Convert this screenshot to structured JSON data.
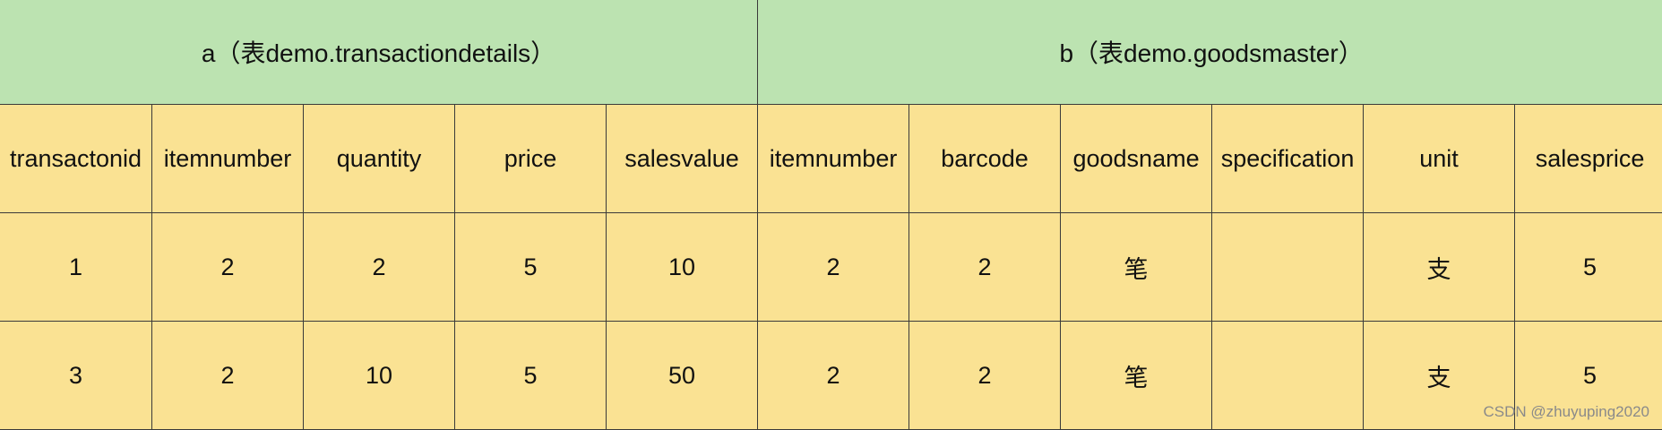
{
  "tables": {
    "a_header": "a（表demo.transactiondetails）",
    "b_header": "b（表demo.goodsmaster）"
  },
  "columns": [
    "transactonid",
    "itemnumber",
    "quantity",
    "price",
    "salesvalue",
    "itemnumber",
    "barcode",
    "goodsname",
    "specification",
    "unit",
    "salesprice"
  ],
  "rows": [
    [
      "1",
      "2",
      "2",
      "5",
      "10",
      "2",
      "2",
      "笔",
      "",
      "支",
      "5"
    ],
    [
      "3",
      "2",
      "10",
      "5",
      "50",
      "2",
      "2",
      "笔",
      "",
      "支",
      "5"
    ]
  ],
  "watermark": "CSDN @zhuyuping2020"
}
